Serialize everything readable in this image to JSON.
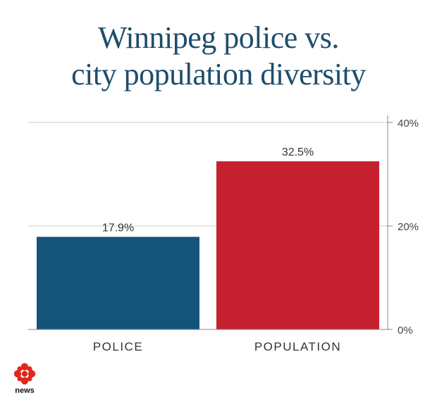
{
  "chart_data": {
    "type": "bar",
    "title_lines": [
      "Winnipeg police vs.",
      "city population diversity"
    ],
    "categories": [
      "POLICE",
      "POPULATION"
    ],
    "values": [
      17.9,
      32.5
    ],
    "value_labels": [
      "17.9%",
      "32.5%"
    ],
    "colors": [
      "#15547a",
      "#c52030"
    ],
    "ylim": [
      0,
      40
    ],
    "yticks": [
      0,
      20,
      40
    ],
    "ytick_labels": [
      "0%",
      "20%",
      "40%"
    ],
    "y_axis_side": "right",
    "grid": true,
    "xlabel": "",
    "ylabel": ""
  },
  "logo": {
    "text": "news",
    "icon": "cbc-gem-icon",
    "color": "#e1261c"
  }
}
